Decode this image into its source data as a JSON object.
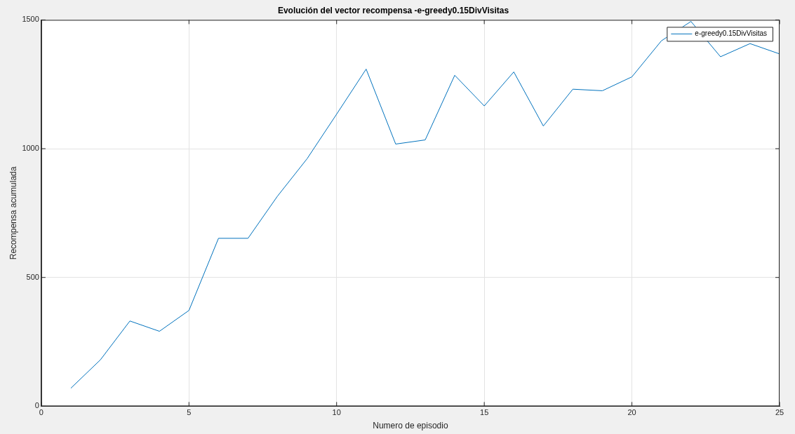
{
  "chart_data": {
    "type": "line",
    "title": "Evolución del vector recompensa -e-greedy0.15DivVisitas",
    "xlabel": "Numero de episodio",
    "ylabel": "Recompensa acumulada",
    "x": [
      1,
      2,
      3,
      4,
      5,
      6,
      7,
      8,
      9,
      10,
      11,
      12,
      13,
      14,
      15,
      16,
      17,
      18,
      19,
      20,
      21,
      22,
      23,
      24,
      25
    ],
    "series": [
      {
        "name": "e-greedy0.15DivVisitas",
        "color": "#0072bd",
        "values": [
          70,
          180,
          331,
          291,
          372,
          652,
          652,
          816,
          961,
          1134,
          1309,
          1018,
          1034,
          1285,
          1166,
          1298,
          1088,
          1231,
          1225,
          1279,
          1419,
          1494,
          1357,
          1408,
          1368
        ]
      }
    ],
    "xlim": [
      0,
      25
    ],
    "xticks": [
      0,
      5,
      10,
      15,
      20,
      25
    ],
    "ylim": [
      0,
      1500
    ],
    "yticks": [
      0,
      500,
      1000,
      1500
    ],
    "grid": true,
    "legend": "top right",
    "marker": "none",
    "line_style": "solid"
  }
}
